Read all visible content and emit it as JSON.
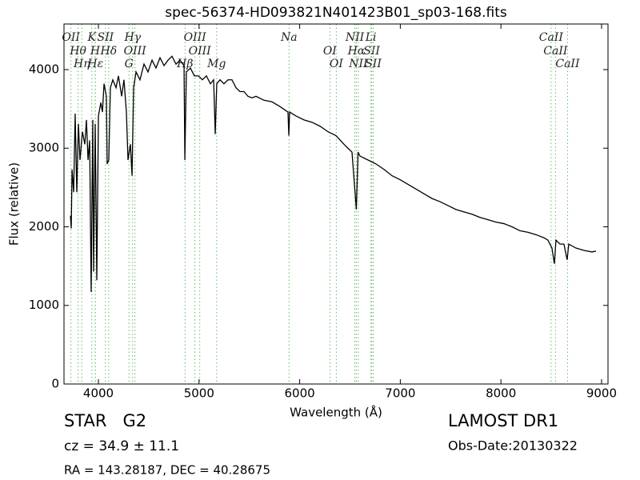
{
  "chart_data": {
    "type": "line",
    "title": "spec-56374-HD093821N401423B01_sp03-168.fits",
    "x_label": "Wavelength (Å)",
    "y_label": "Flux (relative)",
    "color": "#000000",
    "line_color": "#66bb66",
    "xlim": [
      3658,
      9064
    ],
    "ylim": [
      0,
      4580
    ],
    "xticks": [
      4000,
      5000,
      6000,
      7000,
      8000,
      9000
    ],
    "yticks": [
      0,
      1000,
      2000,
      3000,
      4000
    ],
    "x": [
      3722,
      3730,
      3738,
      3754,
      3769,
      3785,
      3801,
      3817,
      3841,
      3865,
      3881,
      3897,
      3913,
      3928,
      3944,
      3952,
      3968,
      3984,
      4000,
      4024,
      4040,
      4056,
      4079,
      4087,
      4103,
      4119,
      4143,
      4175,
      4199,
      4231,
      4254,
      4278,
      4294,
      4318,
      4334,
      4350,
      4374,
      4413,
      4453,
      4493,
      4533,
      4572,
      4612,
      4652,
      4692,
      4731,
      4771,
      4811,
      4851,
      4859,
      4874,
      4914,
      4954,
      4994,
      5033,
      5073,
      5113,
      5145,
      5161,
      5176,
      5208,
      5248,
      5288,
      5327,
      5367,
      5407,
      5447,
      5486,
      5526,
      5566,
      5645,
      5725,
      5804,
      5884,
      5892,
      5900,
      5963,
      6043,
      6122,
      6202,
      6281,
      6361,
      6440,
      6480,
      6520,
      6563,
      6580,
      6599,
      6679,
      6758,
      6838,
      6917,
      6997,
      7076,
      7156,
      7235,
      7315,
      7394,
      7474,
      7553,
      7633,
      7712,
      7792,
      7871,
      7951,
      8030,
      8110,
      8189,
      8269,
      8348,
      8428,
      8467,
      8507,
      8531,
      8547,
      8587,
      8626,
      8658,
      8674,
      8745,
      8825,
      8904,
      8944
    ],
    "values": [
      2140,
      1980,
      2730,
      2440,
      3440,
      2440,
      3310,
      2850,
      3210,
      3050,
      3360,
      2850,
      3100,
      1170,
      3360,
      1430,
      3310,
      1320,
      3410,
      3580,
      3460,
      3820,
      3660,
      2800,
      2850,
      3770,
      3870,
      3770,
      3920,
      3660,
      3870,
      3460,
      2850,
      3050,
      2650,
      3770,
      3970,
      3870,
      4070,
      3970,
      4120,
      4020,
      4150,
      4050,
      4120,
      4170,
      4070,
      4120,
      4050,
      2850,
      3970,
      4020,
      3920,
      3920,
      3870,
      3920,
      3820,
      3870,
      3180,
      3820,
      3870,
      3820,
      3870,
      3870,
      3770,
      3720,
      3720,
      3660,
      3640,
      3660,
      3610,
      3590,
      3530,
      3460,
      3160,
      3460,
      3410,
      3360,
      3330,
      3280,
      3210,
      3160,
      3050,
      3000,
      2950,
      2220,
      2950,
      2900,
      2850,
      2800,
      2730,
      2650,
      2600,
      2540,
      2480,
      2420,
      2360,
      2320,
      2270,
      2220,
      2190,
      2160,
      2120,
      2090,
      2060,
      2040,
      2000,
      1950,
      1930,
      1900,
      1860,
      1830,
      1730,
      1530,
      1830,
      1780,
      1780,
      1580,
      1780,
      1730,
      1700,
      1680,
      1690
    ],
    "lines": [
      {
        "label": "OII",
        "wavelength": 3727
      },
      {
        "label": "Hθ",
        "wavelength": 3798
      },
      {
        "label": "Hη",
        "wavelength": 3835
      },
      {
        "label": "K",
        "wavelength": 3934
      },
      {
        "label": "H",
        "wavelength": 3968
      },
      {
        "label": "Hε",
        "wavelength": 3970
      },
      {
        "label": "SII",
        "wavelength": 4070
      },
      {
        "label": "Hδ",
        "wavelength": 4102
      },
      {
        "label": "G",
        "wavelength": 4304
      },
      {
        "label": "Hγ",
        "wavelength": 4340
      },
      {
        "label": "OIII",
        "wavelength": 4363
      },
      {
        "label": "Hβ",
        "wavelength": 4861
      },
      {
        "label": "OIII",
        "wavelength": 4959
      },
      {
        "label": "OIII",
        "wavelength": 5007
      },
      {
        "label": "Mg",
        "wavelength": 5175
      },
      {
        "label": "Na",
        "wavelength": 5894
      },
      {
        "label": "OI",
        "wavelength": 6300
      },
      {
        "label": "OI",
        "wavelength": 6364
      },
      {
        "label": "NII",
        "wavelength": 6548
      },
      {
        "label": "Hα",
        "wavelength": 6563
      },
      {
        "label": "NII",
        "wavelength": 6583
      },
      {
        "label": "Li",
        "wavelength": 6708
      },
      {
        "label": "SII",
        "wavelength": 6716
      },
      {
        "label": "SII",
        "wavelength": 6731
      },
      {
        "label": "CaII",
        "wavelength": 8498
      },
      {
        "label": "CaII",
        "wavelength": 8542
      },
      {
        "label": "CaII",
        "wavelength": 8662
      }
    ],
    "object_class": "STAR   G2",
    "redshift": "cz = 34.9 ± 11.1",
    "coordinates": "RA = 143.28187, DEC = 40.28675",
    "survey": "LAMOST DR1",
    "obs_date": "Obs-Date:20130322"
  }
}
